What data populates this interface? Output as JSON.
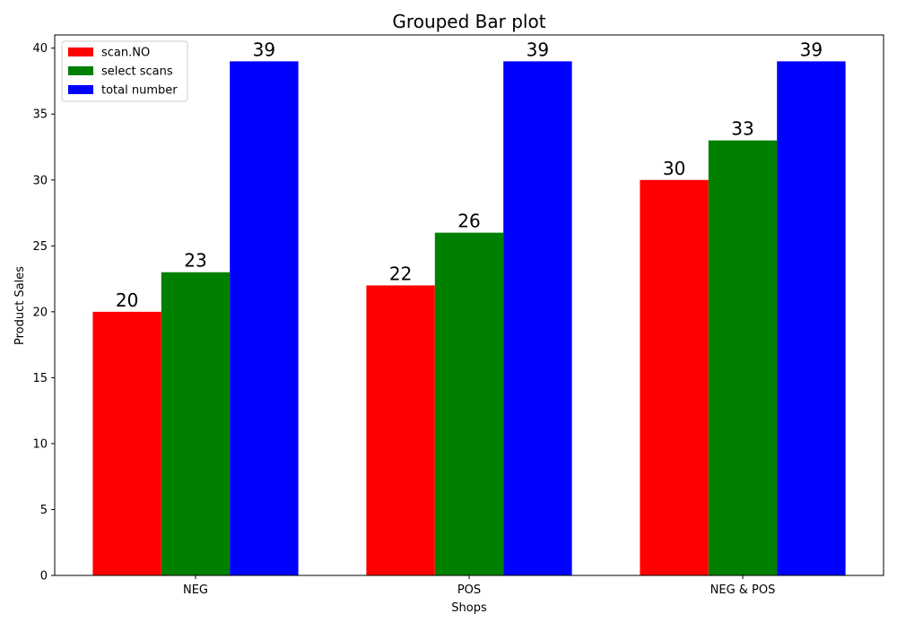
{
  "chart_data": {
    "type": "bar",
    "title": "Grouped Bar plot",
    "xlabel": "Shops",
    "ylabel": "Product Sales",
    "categories": [
      "NEG",
      "POS",
      "NEG & POS"
    ],
    "series": [
      {
        "name": "scan.NO",
        "values": [
          20,
          22,
          30
        ],
        "color": "#ff0000"
      },
      {
        "name": "select scans",
        "values": [
          23,
          26,
          33
        ],
        "color": "#008000"
      },
      {
        "name": "total number",
        "values": [
          39,
          39,
          39
        ],
        "color": "#0000ff"
      }
    ],
    "ylim": [
      0,
      41
    ],
    "yticks": [
      0,
      5,
      10,
      15,
      20,
      25,
      30,
      35,
      40
    ],
    "grid": false,
    "legend_position": "top-left"
  }
}
